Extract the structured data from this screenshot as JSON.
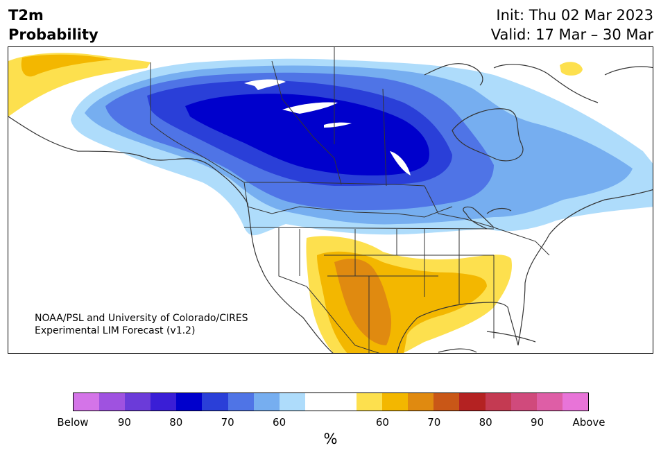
{
  "header": {
    "variable": "T2m",
    "metric": "Probability",
    "init": "Init: Thu 02 Mar 2023",
    "valid": "Valid: 17 Mar – 30 Mar"
  },
  "map": {
    "credit_line1": "NOAA/PSL and University of Colorado/CIRES",
    "credit_line2": "Experimental LIM Forecast (v1.2)"
  },
  "colorbar": {
    "colors": [
      "#d474e8",
      "#9f52e0",
      "#6b3bd9",
      "#3a1ed6",
      "#0000cc",
      "#2a3fd8",
      "#4f74e6",
      "#76aef0",
      "#aedcfb",
      "#ffffff",
      "#ffffff",
      "#fde04e",
      "#f3b700",
      "#e08a10",
      "#c95717",
      "#b42222",
      "#c43a52",
      "#d04a7c",
      "#de5ea6",
      "#e874d8"
    ],
    "tick_labels": [
      "Below",
      "90",
      "80",
      "70",
      "60",
      "60",
      "70",
      "80",
      "90",
      "Above"
    ],
    "unit_label": "%"
  }
}
